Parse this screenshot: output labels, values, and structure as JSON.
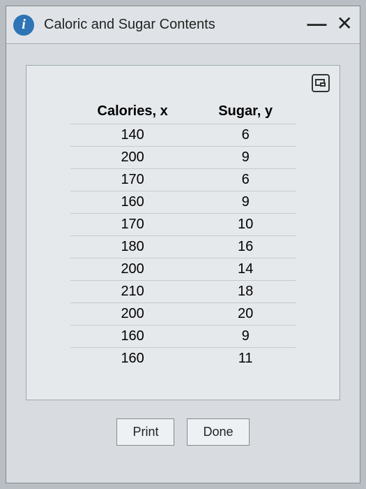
{
  "dialog": {
    "title": "Caloric and Sugar Contents",
    "info_icon_letter": "i"
  },
  "table": {
    "columns": [
      "Calories, x",
      "Sugar, y"
    ],
    "rows": [
      [
        140,
        6
      ],
      [
        200,
        9
      ],
      [
        170,
        6
      ],
      [
        160,
        9
      ],
      [
        170,
        10
      ],
      [
        180,
        16
      ],
      [
        200,
        14
      ],
      [
        210,
        18
      ],
      [
        200,
        20
      ],
      [
        160,
        9
      ],
      [
        160,
        11
      ]
    ],
    "header_font_weight": "bold",
    "cell_border_color": "#c4c9cf",
    "font_size": 20
  },
  "buttons": {
    "print": "Print",
    "done": "Done"
  },
  "colors": {
    "page_bg": "#b8bec4",
    "dialog_bg": "#d8dce0",
    "titlebar_bg": "#dfe3e7",
    "panel_bg": "#e6e9ec",
    "info_circle_bg": "#2f74b5",
    "button_bg": "#eef1f4",
    "border": "#888",
    "text": "#222"
  }
}
